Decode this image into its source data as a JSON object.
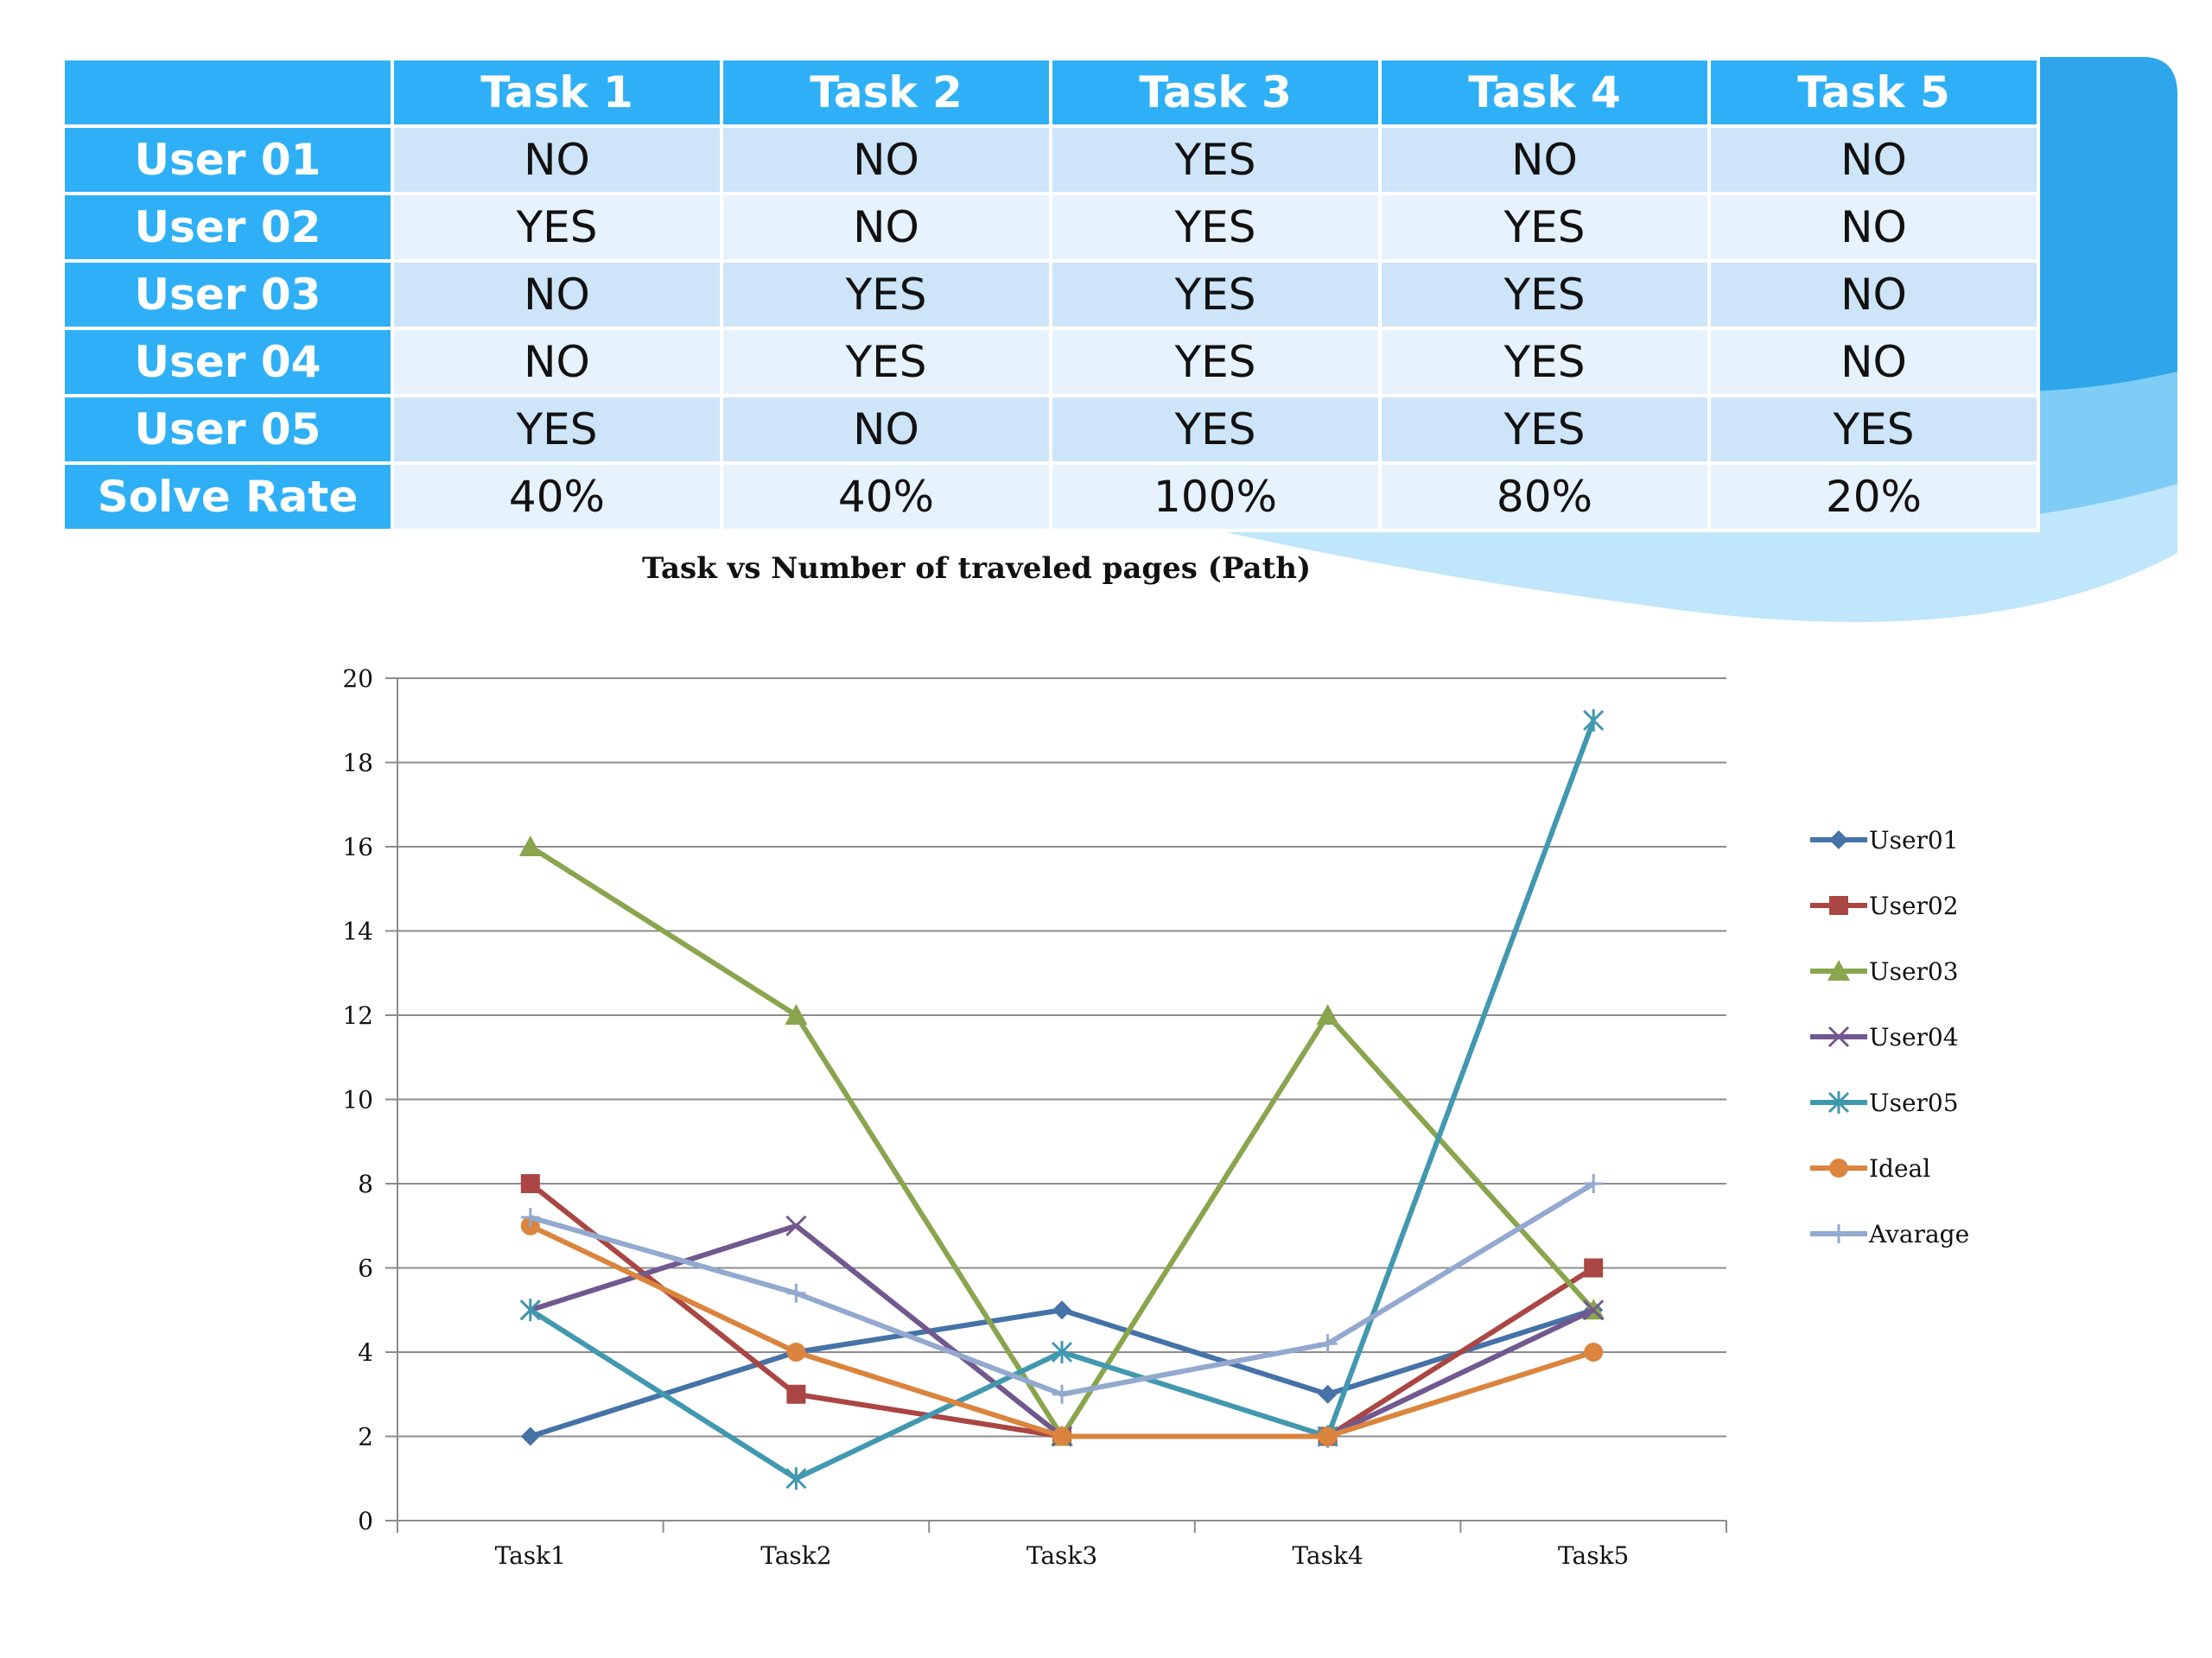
{
  "colors": {
    "header_blue": "#2fb0f6",
    "cell_light": "#e6f2fc",
    "cell_mid": "#cde4f9"
  },
  "table": {
    "columns": [
      "",
      "Task 1",
      "Task 2",
      "Task 3",
      "Task 4",
      "Task 5"
    ],
    "rows": [
      {
        "label": "User 01",
        "cells": [
          "NO",
          "NO",
          "YES",
          "NO",
          "NO"
        ]
      },
      {
        "label": "User 02",
        "cells": [
          "YES",
          "NO",
          "YES",
          "YES",
          "NO"
        ]
      },
      {
        "label": "User 03",
        "cells": [
          "NO",
          "YES",
          "YES",
          "YES",
          "NO"
        ]
      },
      {
        "label": "User 04",
        "cells": [
          "NO",
          "YES",
          "YES",
          "YES",
          "NO"
        ]
      },
      {
        "label": "User 05",
        "cells": [
          "YES",
          "NO",
          "YES",
          "YES",
          "YES"
        ]
      },
      {
        "label": "Solve Rate",
        "cells": [
          "40%",
          "40%",
          "100%",
          "80%",
          "20%"
        ]
      }
    ]
  },
  "chart_data": {
    "type": "line",
    "title": "Task vs Number of traveled pages (Path)",
    "xlabel": "",
    "ylabel": "",
    "categories": [
      "Task1",
      "Task2",
      "Task3",
      "Task4",
      "Task5"
    ],
    "ylim": [
      0,
      20
    ],
    "yticks": [
      0,
      2,
      4,
      6,
      8,
      10,
      12,
      14,
      16,
      18,
      20
    ],
    "grid": true,
    "legend": "right",
    "series": [
      {
        "name": "User01",
        "values": [
          2,
          4,
          5,
          3,
          5
        ],
        "color": "#4572a7",
        "marker": "diamond"
      },
      {
        "name": "User02",
        "values": [
          8,
          3,
          2,
          2,
          6
        ],
        "color": "#aa4643",
        "marker": "square"
      },
      {
        "name": "User03",
        "values": [
          16,
          12,
          2,
          12,
          5
        ],
        "color": "#89a54e",
        "marker": "triangle"
      },
      {
        "name": "User04",
        "values": [
          5,
          7,
          2,
          2,
          5
        ],
        "color": "#71588f",
        "marker": "x"
      },
      {
        "name": "User05",
        "values": [
          5,
          1,
          4,
          2,
          19
        ],
        "color": "#4198af",
        "marker": "star"
      },
      {
        "name": "Ideal",
        "values": [
          7,
          4,
          2,
          2,
          4
        ],
        "color": "#db843d",
        "marker": "circle"
      },
      {
        "name": "Avarage",
        "values": [
          7.2,
          5.4,
          3,
          4.2,
          8
        ],
        "color": "#93a9cf",
        "marker": "plus"
      }
    ]
  }
}
